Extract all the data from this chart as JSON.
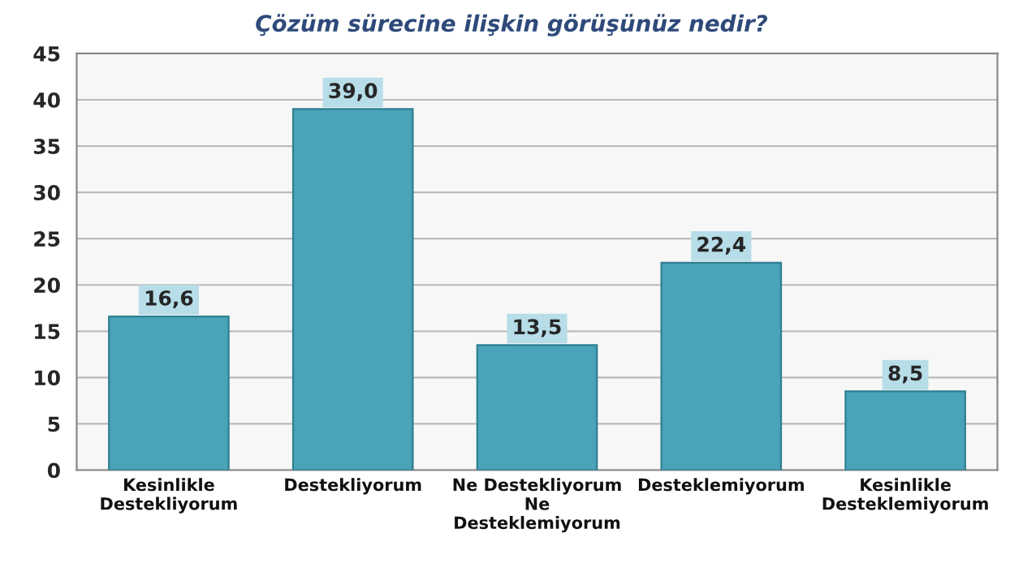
{
  "chart_data": {
    "type": "bar",
    "title": "Çözüm sürecine ilişkin görüşünüz nedir?",
    "categories": [
      "Kesinlikle\nDestekliyorum",
      "Destekliyorum",
      "Ne Destekliyorum\nNe\nDesteklemiyorum",
      "Desteklemiyorum",
      "Kesinlikle\nDesteklemiyorum"
    ],
    "values": [
      16.6,
      39.0,
      13.5,
      22.4,
      8.5
    ],
    "value_labels": [
      "16,6",
      "39,0",
      "13,5",
      "22,4",
      "8,5"
    ],
    "color": "#4aa3b8",
    "ylim": [
      0,
      45
    ],
    "yticks": [
      0,
      5,
      10,
      15,
      20,
      25,
      30,
      35,
      40,
      45
    ],
    "grid": "y"
  }
}
